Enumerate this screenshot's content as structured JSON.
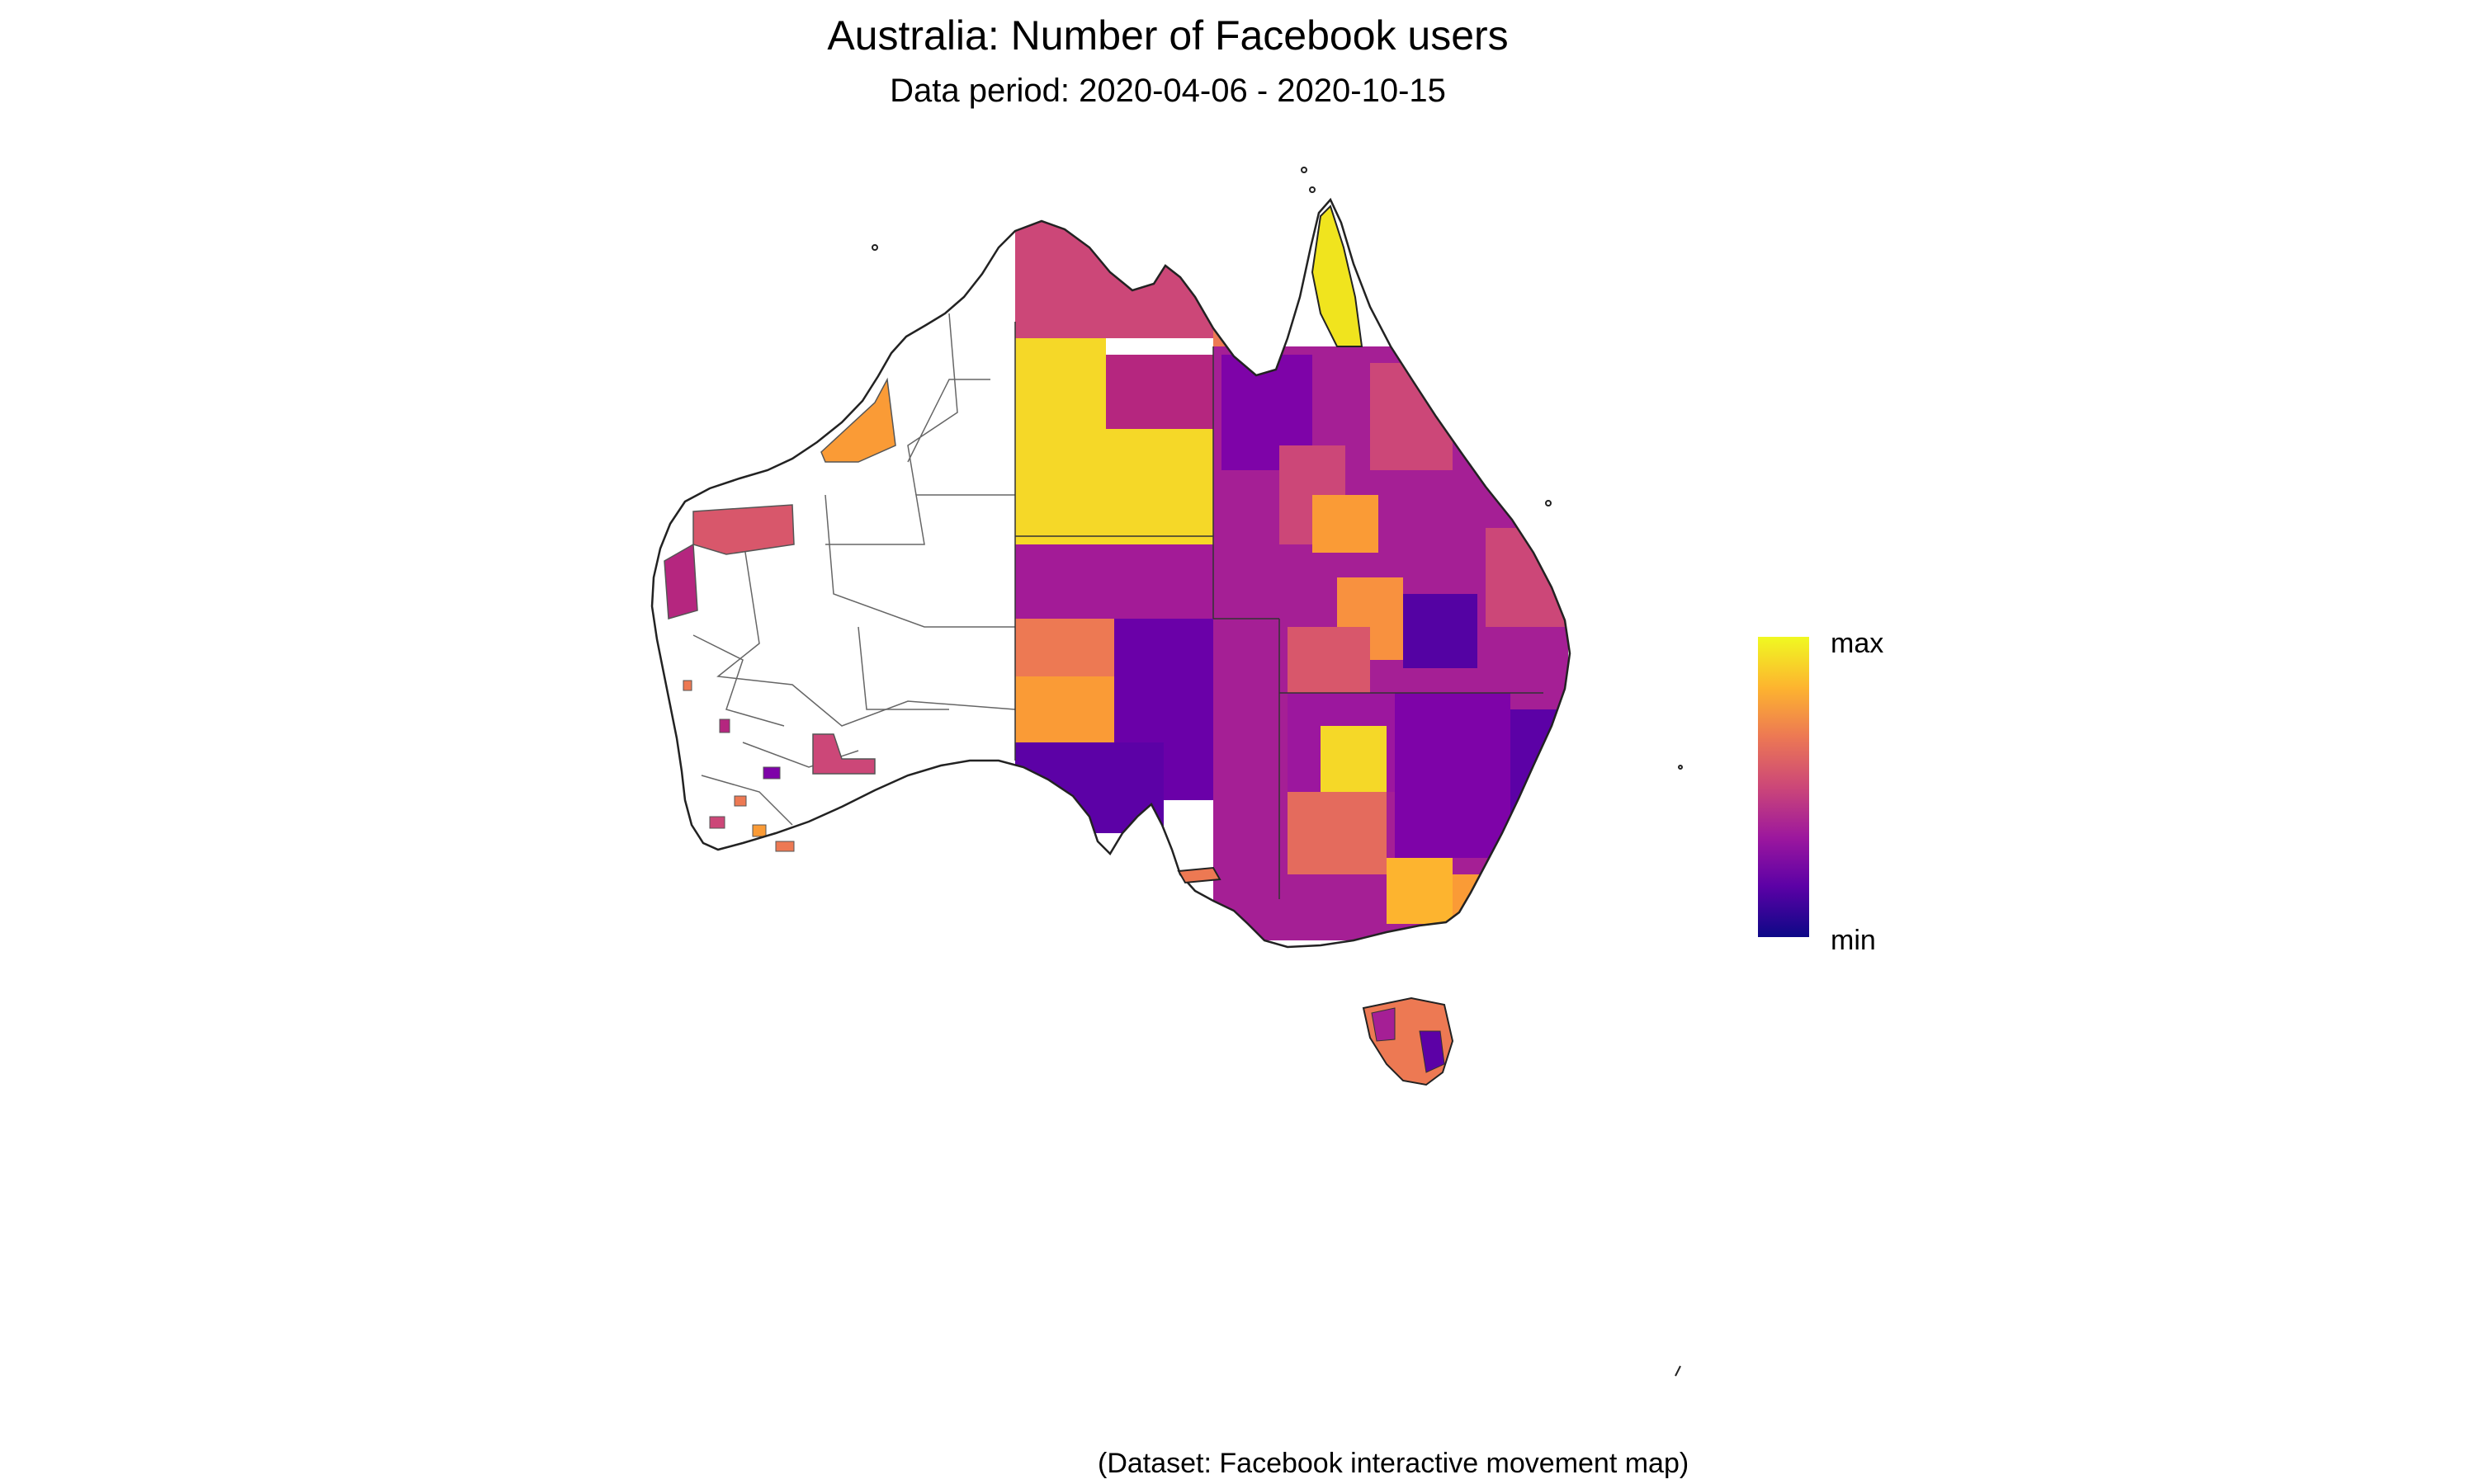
{
  "title": "Australia: Number of Facebook users",
  "subtitle": "Data period: 2020-04-06 - 2020-10-15",
  "caption": "(Dataset: Facebook interactive movement map)",
  "legend": {
    "max_label": "max",
    "min_label": "min",
    "colors": [
      "#0d0887",
      "#5c01a6",
      "#9c179e",
      "#cc4778",
      "#ed7953",
      "#fdb42f",
      "#f0f921"
    ]
  }
}
